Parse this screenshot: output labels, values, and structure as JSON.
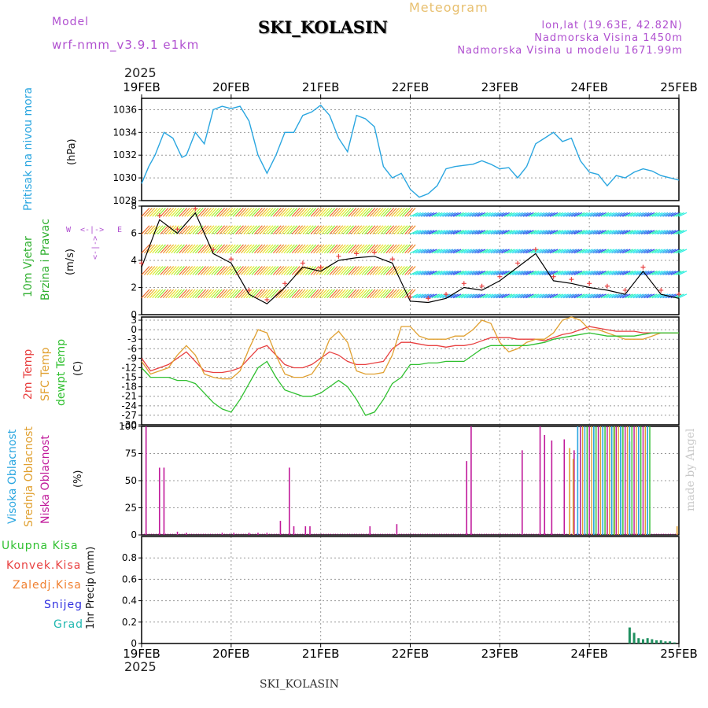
{
  "header": {
    "model_label": "Model",
    "model_name": "wrf-nmm_v3.9.1 e1km",
    "station": "SKI_KOLASIN",
    "subtitle": "Meteogram",
    "lonlat": "lon,lat (19.63E, 42.82N)",
    "elevation": "Nadmorska Visina 1450m",
    "model_elevation": "Nadmorska Visina u modelu 1671.99m",
    "year_top": "2025",
    "year_bottom": "2025",
    "footer_station": "SKI_KOLASIN",
    "watermark": "made by Angel"
  },
  "colors": {
    "pressure": "#2aa6e0",
    "temp2m": "#e84040",
    "sfc": "#e0a030",
    "dewpt": "#30c030",
    "magenta": "#c0199a",
    "wind_label": "#30b030",
    "compass": "#b050d0"
  },
  "date_ticks": [
    "19FEB",
    "20FEB",
    "21FEB",
    "22FEB",
    "23FEB",
    "24FEB",
    "25FEB"
  ],
  "compass": {
    "west": "W",
    "east": "E",
    "north_arrow": "<-|->",
    "n_label": "N",
    "s_label": "S"
  },
  "panels": {
    "pressure": {
      "label": "Pritisak na nivou mora",
      "unit": "(hPa)",
      "ylim": [
        1028,
        1037
      ],
      "ticks": [
        "1028",
        "1030",
        "1032",
        "1034",
        "1036"
      ]
    },
    "wind": {
      "label1": "10m Vjetar",
      "label2": "Brzina i Pravac",
      "unit": "(m/s)",
      "ylim": [
        0,
        8
      ],
      "ticks": [
        "0",
        "2",
        "4",
        "6",
        "8"
      ]
    },
    "temperature": {
      "label1": "2m Temp",
      "label2": "SFC Temp",
      "label3": "dewpt Temp",
      "unit": "(C)",
      "ylim": [
        -30,
        4
      ],
      "ticks": [
        "3",
        "0",
        "-3",
        "-6",
        "-9",
        "-12",
        "-15",
        "-18",
        "-21",
        "-24",
        "-27",
        "-30"
      ]
    },
    "clouds": {
      "label1": "Visoka Oblacnost",
      "label2": "Srednja Oblacnost",
      "label3": "Niska Oblacnost",
      "unit": "(%)",
      "ylim": [
        0,
        100
      ],
      "ticks": [
        "0",
        "25",
        "50",
        "75",
        "100"
      ]
    },
    "precip": {
      "legend": [
        "Ukupna Kisa",
        "Konvek.Kisa",
        "Zaledj.Kisa",
        "Snijeg",
        "Grad"
      ],
      "legend_colors": [
        "#30c030",
        "#e84040",
        "#f08030",
        "#3030e0",
        "#20b8b0"
      ],
      "label": "1hr Precip (mm)",
      "ylim": [
        0,
        1
      ],
      "ticks": [
        "0",
        "0.2",
        "0.4",
        "0.6",
        "0.8"
      ]
    }
  },
  "chart_data": [
    {
      "type": "line",
      "name": "pressure",
      "x_unit": "days since 19FEB 00Z",
      "x": [
        0,
        0.08,
        0.15,
        0.25,
        0.35,
        0.45,
        0.5,
        0.6,
        0.7,
        0.8,
        0.9,
        1.0,
        1.1,
        1.2,
        1.3,
        1.4,
        1.5,
        1.6,
        1.7,
        1.8,
        1.9,
        2.0,
        2.1,
        2.2,
        2.3,
        2.4,
        2.5,
        2.6,
        2.7,
        2.8,
        2.9,
        3.0,
        3.1,
        3.2,
        3.3,
        3.4,
        3.5,
        3.6,
        3.7,
        3.8,
        3.9,
        4.0,
        4.1,
        4.2,
        4.3,
        4.4,
        4.5,
        4.6,
        4.7,
        4.8,
        4.9,
        5.0,
        5.1,
        5.2,
        5.3,
        5.4,
        5.5,
        5.6,
        5.7,
        5.8,
        5.9,
        6.0
      ],
      "values": [
        1029.5,
        1031,
        1032,
        1034,
        1033.5,
        1031.8,
        1032,
        1034,
        1033,
        1036,
        1036.3,
        1036.1,
        1036.3,
        1035,
        1032,
        1030.4,
        1032,
        1034,
        1034,
        1035.5,
        1035.8,
        1036.4,
        1035.5,
        1033.5,
        1032.3,
        1035.5,
        1035.2,
        1034.5,
        1031,
        1030,
        1030.4,
        1029,
        1028.3,
        1028.6,
        1029.3,
        1030.8,
        1031,
        1031.1,
        1031.2,
        1031.5,
        1031.2,
        1030.8,
        1030.9,
        1030,
        1031,
        1033,
        1033.5,
        1034,
        1033.2,
        1033.5,
        1031.5,
        1030.5,
        1030.3,
        1029.3,
        1030.2,
        1030,
        1030.5,
        1030.8,
        1030.6,
        1030.2,
        1030,
        1029.8
      ],
      "ylim": [
        1028,
        1037
      ]
    },
    {
      "type": "line",
      "name": "wind_speed",
      "x": [
        0,
        0.2,
        0.4,
        0.6,
        0.8,
        1.0,
        1.2,
        1.4,
        1.6,
        1.8,
        2.0,
        2.2,
        2.4,
        2.6,
        2.8,
        3.0,
        3.2,
        3.4,
        3.6,
        3.8,
        4.0,
        4.2,
        4.4,
        4.6,
        4.8,
        5.0,
        5.2,
        5.4,
        5.6,
        5.8,
        6.0
      ],
      "values": [
        3.5,
        7,
        6,
        7.5,
        4.5,
        3.8,
        1.5,
        0.8,
        2,
        3.5,
        3.2,
        4,
        4.2,
        4.3,
        3.8,
        1,
        0.9,
        1.2,
        2,
        1.8,
        2.5,
        3.5,
        4.5,
        2.5,
        2.3,
        2,
        1.8,
        1.5,
        3.2,
        1.5,
        1.2
      ],
      "ylim": [
        0,
        8
      ]
    },
    {
      "type": "line",
      "name": "temperatures",
      "x": [
        0,
        0.1,
        0.2,
        0.3,
        0.4,
        0.5,
        0.6,
        0.7,
        0.8,
        0.9,
        1.0,
        1.1,
        1.2,
        1.3,
        1.4,
        1.5,
        1.6,
        1.7,
        1.8,
        1.9,
        2.0,
        2.1,
        2.2,
        2.3,
        2.4,
        2.5,
        2.6,
        2.7,
        2.8,
        2.9,
        3.0,
        3.1,
        3.2,
        3.3,
        3.4,
        3.5,
        3.6,
        3.7,
        3.8,
        3.9,
        4.0,
        4.1,
        4.2,
        4.3,
        4.4,
        4.5,
        4.6,
        4.7,
        4.8,
        4.9,
        5.0,
        5.1,
        5.2,
        5.3,
        5.4,
        5.5,
        5.6,
        5.7,
        5.8,
        5.9,
        6.0
      ],
      "series": [
        {
          "name": "2m Temp",
          "values": [
            -9,
            -13,
            -12,
            -11,
            -9,
            -7,
            -10,
            -13,
            -13.5,
            -13.5,
            -13,
            -12,
            -9,
            -6,
            -5,
            -8,
            -11,
            -12,
            -12,
            -11,
            -9,
            -7,
            -8,
            -10,
            -11,
            -11,
            -10.5,
            -10,
            -6,
            -4,
            -4,
            -4.5,
            -5,
            -5,
            -5.5,
            -5,
            -5,
            -4.5,
            -3.5,
            -2.5,
            -2.5,
            -2.5,
            -3,
            -3,
            -3,
            -3.5,
            -2.5,
            -1.5,
            -1,
            0,
            1,
            0.5,
            0,
            -0.5,
            -0.5,
            -0.5,
            -1,
            -1,
            -1,
            -1,
            -1
          ]
        },
        {
          "name": "SFC Temp",
          "values": [
            -10,
            -14,
            -13,
            -12,
            -8,
            -5,
            -8,
            -14,
            -15,
            -15.5,
            -15.5,
            -13,
            -6,
            0,
            -1,
            -8,
            -14,
            -15,
            -15,
            -14,
            -10,
            -3,
            -0.5,
            -4,
            -13,
            -14,
            -14,
            -13.5,
            -8,
            1,
            1,
            -2,
            -3,
            -3,
            -3,
            -2,
            -2,
            0,
            3,
            2,
            -4,
            -7,
            -6,
            -4,
            -3,
            -3,
            -1,
            3,
            4,
            3,
            0,
            0,
            -1,
            -2,
            -3,
            -3,
            -3,
            -2,
            -1,
            -1,
            -1
          ]
        },
        {
          "name": "dewpt Temp",
          "values": [
            -12,
            -15,
            -15,
            -15,
            -16,
            -16,
            -17,
            -20,
            -23,
            -25,
            -26,
            -22,
            -17,
            -12,
            -10,
            -15,
            -19,
            -20,
            -21,
            -21,
            -20,
            -18,
            -16,
            -18,
            -22,
            -27,
            -26,
            -22,
            -17,
            -15,
            -11,
            -11,
            -10.5,
            -10.5,
            -10,
            -10,
            -10,
            -8,
            -6,
            -5,
            -5,
            -5,
            -5,
            -5,
            -4.5,
            -4,
            -3,
            -2.5,
            -2,
            -1.5,
            -1,
            -1.5,
            -2,
            -2,
            -2,
            -2,
            -1.5,
            -1,
            -1,
            -1,
            -1
          ]
        }
      ],
      "ylim": [
        -30,
        4
      ]
    },
    {
      "type": "bar",
      "name": "clouds",
      "series": [
        {
          "name": "Niska Oblacnost",
          "bars": [
            [
              0.05,
              100
            ],
            [
              0.2,
              62
            ],
            [
              0.25,
              62
            ],
            [
              0.4,
              3
            ],
            [
              0.5,
              2
            ],
            [
              0.9,
              2
            ],
            [
              1.03,
              2
            ],
            [
              1.2,
              2
            ],
            [
              1.3,
              2
            ],
            [
              1.4,
              2
            ],
            [
              1.55,
              13
            ],
            [
              1.65,
              62
            ],
            [
              1.7,
              8
            ],
            [
              1.83,
              8
            ],
            [
              1.88,
              8
            ],
            [
              2.55,
              8
            ],
            [
              2.85,
              10
            ],
            [
              3.63,
              68
            ],
            [
              3.68,
              100
            ],
            [
              4.25,
              78
            ],
            [
              4.45,
              100
            ],
            [
              4.5,
              92
            ],
            [
              4.58,
              87
            ],
            [
              4.72,
              88
            ],
            [
              4.83,
              78
            ]
          ]
        },
        {
          "name": "Srednja Oblacnost",
          "bars": [
            [
              4.78,
              80
            ],
            [
              4.82,
              70
            ],
            [
              5.2,
              25
            ],
            [
              5.28,
              100
            ],
            [
              5.98,
              8
            ]
          ]
        },
        {
          "name": "Visoka Oblacnost",
          "bars": [
            [
              4.87,
              100
            ],
            [
              4.9,
              100
            ],
            [
              5.05,
              100
            ],
            [
              5.15,
              100
            ],
            [
              5.25,
              100
            ],
            [
              5.35,
              100
            ],
            [
              5.45,
              86
            ],
            [
              5.55,
              100
            ],
            [
              5.65,
              100
            ]
          ]
        }
      ],
      "ylim": [
        0,
        100
      ]
    },
    {
      "type": "bar",
      "name": "precip",
      "series": [
        {
          "name": "Ukupna Kisa",
          "bars": [
            [
              5.45,
              0.15
            ],
            [
              5.5,
              0.1
            ],
            [
              5.55,
              0.05
            ],
            [
              5.6,
              0.04
            ],
            [
              5.65,
              0.05
            ],
            [
              5.7,
              0.04
            ],
            [
              5.75,
              0.03
            ],
            [
              5.8,
              0.03
            ],
            [
              5.85,
              0.02
            ],
            [
              5.9,
              0.02
            ],
            [
              5.95,
              0.01
            ]
          ]
        }
      ],
      "ylim": [
        0,
        1
      ]
    }
  ]
}
